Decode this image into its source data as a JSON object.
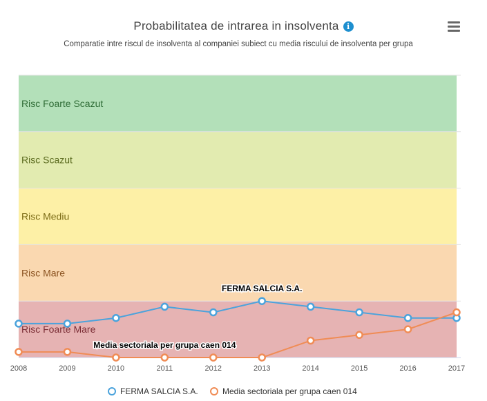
{
  "header": {
    "title": "Probabilitatea de intrarea in insolventa",
    "info_icon": "info-icon",
    "subtitle": "Comparatie intre riscul de insolventa al companiei subiect cu media riscului de insolventa per grupa",
    "menu_icon": "hamburger-menu-icon"
  },
  "chart_data": {
    "type": "line",
    "title": "Probabilitatea de intrarea in insolventa",
    "subtitle": "Comparatie intre riscul de insolventa al companiei subiect cu media riscului de insolventa per grupa",
    "categories": [
      "2008",
      "2009",
      "2010",
      "2011",
      "2012",
      "2013",
      "2014",
      "2015",
      "2016",
      "2017"
    ],
    "ylim": [
      0,
      5
    ],
    "bands": [
      {
        "label": "Risc Foarte Scazut",
        "from": 4,
        "to": 5,
        "color": "#b3e0b9",
        "text_color": "#2e6b35"
      },
      {
        "label": "Risc Scazut",
        "from": 3,
        "to": 4,
        "color": "#e2ebb0",
        "text_color": "#5a6a1e"
      },
      {
        "label": "Risc Mediu",
        "from": 2,
        "to": 3,
        "color": "#fdf0a6",
        "text_color": "#7a6a14"
      },
      {
        "label": "Risc Mare",
        "from": 1,
        "to": 2,
        "color": "#fad8b0",
        "text_color": "#8a5220"
      },
      {
        "label": "Risc Foarte Mare",
        "from": 0,
        "to": 1,
        "color": "#e6b3b3",
        "text_color": "#7a2d35"
      }
    ],
    "series": [
      {
        "name": "FERMA SALCIA S.A.",
        "color": "#4ba3dc",
        "values": [
          0.6,
          0.6,
          0.7,
          0.9,
          0.8,
          1.0,
          0.9,
          0.8,
          0.7,
          0.7
        ],
        "data_label": {
          "text": "FERMA SALCIA S.A.",
          "index": 5
        }
      },
      {
        "name": "Media sectoriala per grupa caen 014",
        "color": "#f08c55",
        "values": [
          0.1,
          0.1,
          0.0,
          0.0,
          0.0,
          0.0,
          0.3,
          0.4,
          0.5,
          0.8
        ],
        "data_label": {
          "text": "Media sectoriala per grupa caen 014",
          "index": 3
        }
      }
    ],
    "legend_position": "bottom-center",
    "grid": false
  },
  "legend": {
    "items": [
      {
        "label": "FERMA SALCIA S.A.",
        "color": "#4ba3dc"
      },
      {
        "label": "Media sectoriala per grupa caen 014",
        "color": "#f08c55"
      }
    ]
  }
}
